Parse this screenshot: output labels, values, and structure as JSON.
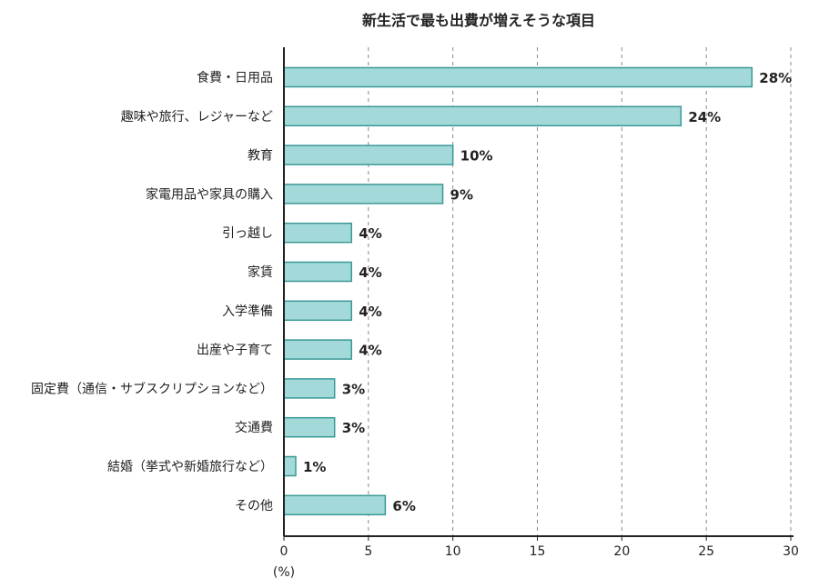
{
  "chart_data": {
    "type": "bar",
    "orientation": "horizontal",
    "title": "新生活で最も出費が増えそうな項目",
    "xlabel": "(%)",
    "categories": [
      "食費・日用品",
      "趣味や旅行、レジャーなど",
      "教育",
      "家電用品や家具の購入",
      "引っ越し",
      "家賃",
      "入学準備",
      "出産や子育て",
      "固定費（通信・サブスクリプションなど）",
      "交通費",
      "結婚（挙式や新婚旅行など）",
      "その他"
    ],
    "values": [
      27.7,
      23.5,
      10.0,
      9.4,
      4.0,
      4.0,
      4.0,
      4.0,
      3.0,
      3.0,
      0.7,
      6.0
    ],
    "data_labels": [
      "28%",
      "24%",
      "10%",
      "9%",
      "4%",
      "4%",
      "4%",
      "4%",
      "3%",
      "3%",
      "1%",
      "6%"
    ],
    "xlim": [
      0,
      30
    ],
    "xticks": [
      "0",
      "5",
      "10",
      "15",
      "20",
      "25",
      "30"
    ],
    "grid": "vertical dashed",
    "legend": "none",
    "colors": {
      "bar_fill": "#a3dad9",
      "bar_stroke": "#3a9896",
      "grid": "#888888",
      "axis": "#222222"
    }
  }
}
